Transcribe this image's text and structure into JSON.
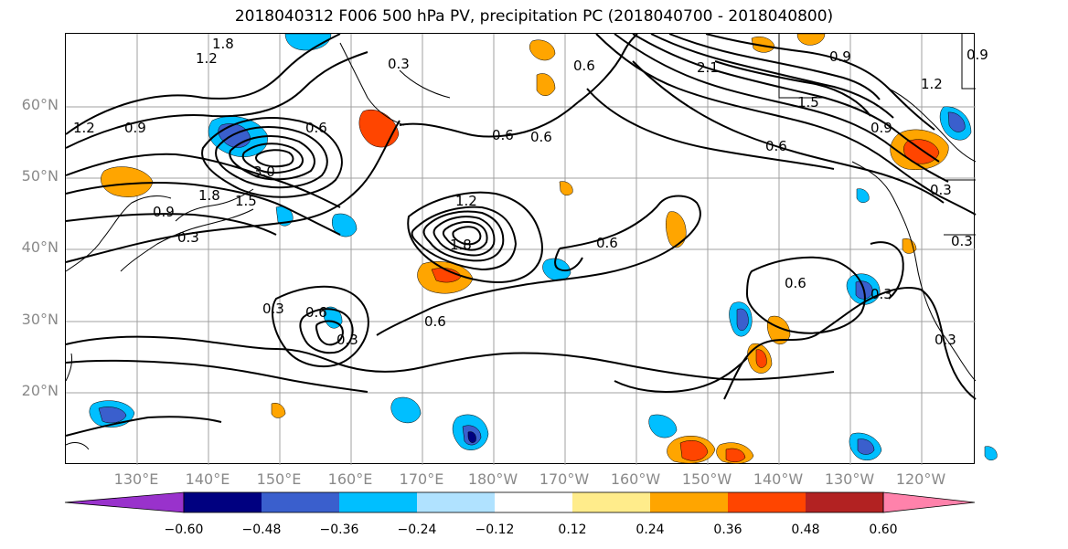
{
  "title": "2018040312 F006 500 hPa PV, precipitation PC (2018040700 - 2018040800)",
  "lat_labels": [
    "60°N",
    "50°N",
    "40°N",
    "30°N",
    "20°N"
  ],
  "lon_labels": [
    "130°E",
    "140°E",
    "150°E",
    "160°E",
    "170°E",
    "180°W",
    "170°W",
    "160°W",
    "150°W",
    "140°W",
    "130°W",
    "120°W"
  ],
  "contour_labels": [
    "1.8",
    "1.2",
    "1.2",
    "0.9",
    "3.0",
    "1.8",
    "1.5",
    "0.9",
    "0.3",
    "0.6",
    "0.3",
    "0.6",
    "1.2",
    "1.8",
    "0.6",
    "0.3",
    "0.6",
    "0.3",
    "0.6",
    "0.9",
    "0.6",
    "2.1",
    "1.5",
    "0.6",
    "0.9",
    "1.2",
    "0.9",
    "0.3",
    "0.3",
    "0.6",
    "0.3",
    "0.6",
    "0.3"
  ],
  "colorbar": {
    "colors": [
      "#9932cc",
      "#000080",
      "#3a5fcd",
      "#00bfff",
      "#b0e2ff",
      "#ffffff",
      "#ffec8b",
      "#ffa500",
      "#ff4500",
      "#b22222",
      "#ff82ab"
    ],
    "tick_labels": [
      "−0.60",
      "−0.48",
      "−0.36",
      "−0.24",
      "−0.12",
      "0.12",
      "0.24",
      "0.36",
      "0.48",
      "0.60"
    ]
  },
  "colors": {
    "contour": "#000000",
    "grid": "#a0a0a0",
    "axis_label": "#8a8a8a"
  }
}
